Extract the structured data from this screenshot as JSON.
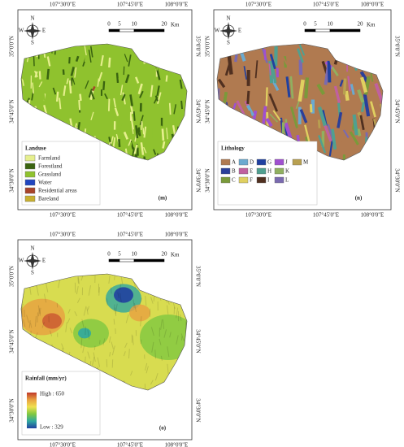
{
  "scale_bar": {
    "labels": [
      "0",
      "5",
      "10",
      "20"
    ],
    "unit": "Km"
  },
  "north_arrow": {
    "n": "N",
    "s": "S",
    "w": "W",
    "e": "E"
  },
  "lon_labels": [
    "107°30'0\"E",
    "107°45'0\"E",
    "108°0'0\"E"
  ],
  "lat_labels": [
    "35°0'0\"N",
    "34°45'0\"N",
    "34°30'0\"N"
  ],
  "panels": [
    {
      "kind": "landuse",
      "label": "(m)",
      "legend_title": "Landuse",
      "items": [
        {
          "label": "Farmland",
          "color": "#e6ef8e"
        },
        {
          "label": "Forestland",
          "color": "#3a6410"
        },
        {
          "label": "Grassland",
          "color": "#8fc22e"
        },
        {
          "label": "Water",
          "color": "#2046c0"
        },
        {
          "label": "Residential areas",
          "color": "#a8442a"
        },
        {
          "label": "Bareland",
          "color": "#c8b030"
        }
      ]
    },
    {
      "kind": "lithology",
      "label": "(n)",
      "legend_title": "Lithology",
      "items": [
        {
          "label": "A",
          "color": "#b07a50"
        },
        {
          "label": "B",
          "color": "#2a3f9a"
        },
        {
          "label": "C",
          "color": "#7a9a3a"
        },
        {
          "label": "D",
          "color": "#6aaad0"
        },
        {
          "label": "E",
          "color": "#c060a0"
        },
        {
          "label": "F",
          "color": "#e0d060"
        },
        {
          "label": "G",
          "color": "#2040a0"
        },
        {
          "label": "H",
          "color": "#50a090"
        },
        {
          "label": "I",
          "color": "#503020"
        },
        {
          "label": "J",
          "color": "#a050d0"
        },
        {
          "label": "K",
          "color": "#90b060"
        },
        {
          "label": "L",
          "color": "#7a6ab0"
        },
        {
          "label": "M",
          "color": "#b8a050"
        }
      ]
    },
    {
      "kind": "rainfall",
      "label": "(o)",
      "legend_title": "Rainfall (mm/yr)",
      "high": "High : 650",
      "low": "Low : 329",
      "ramp": [
        "#c0392b",
        "#e8a040",
        "#f0e050",
        "#80c840",
        "#30a8a0",
        "#2040a0"
      ]
    }
  ]
}
